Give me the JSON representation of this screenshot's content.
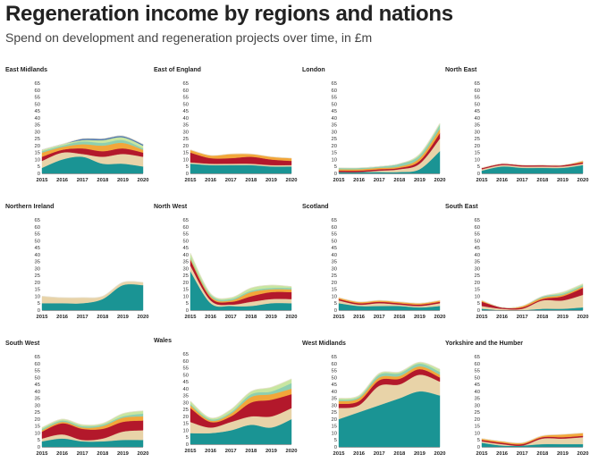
{
  "header": {
    "title": "Regeneration income by regions and nations",
    "subtitle": "Spend on development and regeneration projects over time, in £m"
  },
  "chart_data": {
    "type": "area",
    "stacked": true,
    "x": [
      2015,
      2016,
      2017,
      2018,
      2019,
      2020
    ],
    "ylim": [
      0,
      65
    ],
    "yticks": [
      0,
      5,
      10,
      15,
      20,
      25,
      30,
      35,
      40,
      45,
      50,
      55,
      60,
      65
    ],
    "layer_colors": [
      "#1a9494",
      "#e8d3a8",
      "#b3182b",
      "#f2a63a",
      "#8ecfb0",
      "#c8e6a0",
      "#4a74b0",
      "#bf3d0c",
      "#035e6e",
      "#f4e7bb"
    ],
    "panels": [
      {
        "title": "East Midlands",
        "layers": [
          [
            4,
            10,
            12,
            7,
            7,
            5
          ],
          [
            5,
            5,
            2,
            5,
            7,
            7
          ],
          [
            3,
            2,
            4,
            4,
            4,
            3
          ],
          [
            3,
            2,
            3,
            4,
            4,
            2
          ],
          [
            1,
            1,
            2,
            2,
            2,
            1
          ],
          [
            1,
            1,
            1,
            2,
            2,
            2
          ],
          [
            0,
            0,
            1,
            1,
            1,
            1
          ]
        ]
      },
      {
        "title": "East of England",
        "layers": [
          [
            7,
            6,
            6,
            6,
            5,
            5
          ],
          [
            1,
            1,
            1,
            1,
            1,
            1
          ],
          [
            7,
            4,
            4,
            5,
            4,
            3
          ],
          [
            2,
            2,
            3,
            2,
            2,
            2
          ]
        ]
      },
      {
        "title": "London",
        "layers": [
          [
            1,
            1,
            1,
            1,
            3,
            16
          ],
          [
            0,
            0,
            1,
            2,
            4,
            9
          ],
          [
            1,
            1,
            1,
            1,
            2,
            4
          ],
          [
            1,
            1,
            1,
            1,
            2,
            3
          ],
          [
            1,
            1,
            1,
            2,
            2,
            3
          ],
          [
            0,
            0,
            0,
            0,
            1,
            1
          ]
        ]
      },
      {
        "title": "North East",
        "layers": [
          [
            2,
            5,
            4,
            4,
            4,
            6
          ],
          [
            1,
            1,
            1,
            1,
            1,
            1
          ],
          [
            1,
            1,
            1,
            1,
            1,
            1
          ],
          [
            0,
            0,
            0,
            0,
            0,
            1
          ]
        ]
      },
      {
        "title": "Northern Ireland",
        "layers": [
          [
            5,
            5,
            5,
            8,
            18,
            18
          ],
          [
            5,
            4,
            4,
            2,
            2,
            2
          ]
        ]
      },
      {
        "title": "North West",
        "layers": [
          [
            28,
            5,
            3,
            3,
            5,
            5
          ],
          [
            4,
            2,
            1,
            3,
            3,
            3
          ],
          [
            4,
            2,
            2,
            4,
            5,
            5
          ],
          [
            1,
            1,
            1,
            3,
            2,
            2
          ],
          [
            1,
            1,
            1,
            1,
            1,
            1
          ],
          [
            3,
            1,
            1,
            2,
            2,
            1
          ]
        ]
      },
      {
        "title": "Scotland",
        "layers": [
          [
            5,
            3,
            3,
            3,
            2,
            3
          ],
          [
            2,
            1,
            2,
            1,
            1,
            2
          ],
          [
            1,
            1,
            1,
            1,
            1,
            1
          ],
          [
            1,
            1,
            1,
            1,
            1,
            1
          ]
        ]
      },
      {
        "title": "South East",
        "layers": [
          [
            1,
            0,
            0,
            1,
            1,
            2
          ],
          [
            2,
            1,
            1,
            6,
            6,
            9
          ],
          [
            3,
            1,
            1,
            1,
            3,
            5
          ],
          [
            1,
            0,
            1,
            1,
            1,
            1
          ],
          [
            0,
            0,
            0,
            1,
            1,
            1
          ],
          [
            0,
            0,
            0,
            0,
            1,
            1
          ]
        ]
      },
      {
        "title": "South West",
        "layers": [
          [
            4,
            6,
            4,
            4,
            5,
            5
          ],
          [
            2,
            3,
            1,
            2,
            6,
            7
          ],
          [
            5,
            8,
            8,
            7,
            7,
            7
          ],
          [
            1,
            1,
            1,
            2,
            3,
            3
          ],
          [
            1,
            1,
            1,
            1,
            1,
            2
          ],
          [
            1,
            1,
            1,
            1,
            2,
            2
          ]
        ]
      },
      {
        "title": "Wales",
        "layers": [
          [
            8,
            8,
            10,
            14,
            12,
            18
          ],
          [
            8,
            4,
            6,
            6,
            8,
            8
          ],
          [
            10,
            4,
            4,
            10,
            12,
            10
          ],
          [
            2,
            1,
            2,
            4,
            4,
            4
          ],
          [
            1,
            1,
            1,
            2,
            2,
            4
          ],
          [
            2,
            1,
            2,
            2,
            3,
            3
          ]
        ]
      },
      {
        "title": "West Midlands",
        "layers": [
          [
            20,
            25,
            30,
            35,
            40,
            37
          ],
          [
            8,
            5,
            14,
            10,
            12,
            10
          ],
          [
            3,
            3,
            4,
            4,
            4,
            3
          ],
          [
            2,
            2,
            2,
            2,
            2,
            2
          ],
          [
            1,
            1,
            2,
            2,
            2,
            2
          ],
          [
            1,
            1,
            1,
            1,
            1,
            2
          ]
        ]
      },
      {
        "title": "Yorkshire and the Humber",
        "layers": [
          [
            3,
            1,
            1,
            2,
            2,
            2
          ],
          [
            1,
            1,
            0,
            4,
            4,
            5
          ],
          [
            1,
            1,
            1,
            1,
            1,
            1
          ],
          [
            1,
            1,
            1,
            1,
            2,
            2
          ]
        ]
      }
    ]
  }
}
